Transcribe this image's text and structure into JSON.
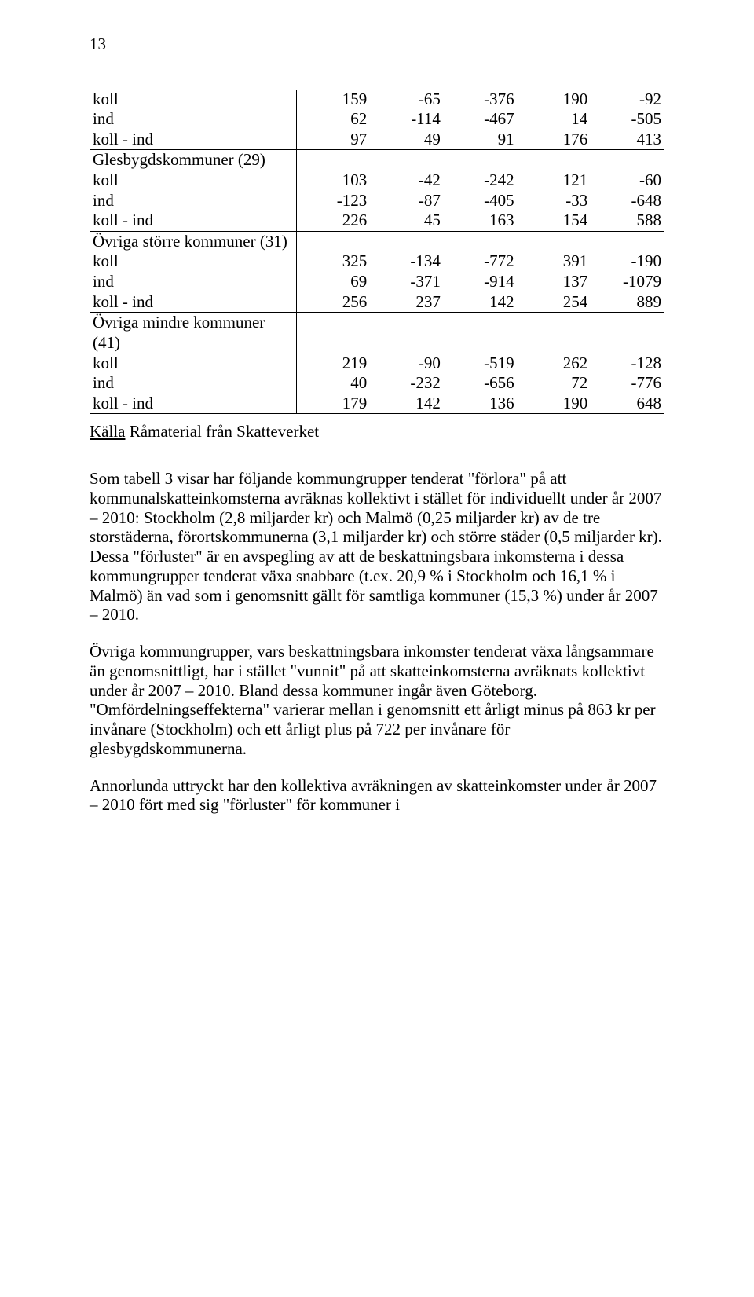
{
  "page_number": "13",
  "table": {
    "col_widths_pct": [
      36,
      12.8,
      12.8,
      12.8,
      12.8,
      12.8
    ],
    "font_size_pt": 16,
    "border_color": "#000000",
    "groups": [
      {
        "header": null,
        "rows": [
          {
            "label": "koll",
            "values": [
              "159",
              "-65",
              "-376",
              "190",
              "-92"
            ]
          },
          {
            "label": "ind",
            "values": [
              "62",
              "-114",
              "-467",
              "14",
              "-505"
            ]
          },
          {
            "label": "koll - ind",
            "values": [
              "97",
              "49",
              "91",
              "176",
              "413"
            ]
          }
        ]
      },
      {
        "header": "Glesbygdskommuner (29)",
        "rows": [
          {
            "label": "koll",
            "values": [
              "103",
              "-42",
              "-242",
              "121",
              "-60"
            ]
          },
          {
            "label": "ind",
            "values": [
              "-123",
              "-87",
              "-405",
              "-33",
              "-648"
            ]
          },
          {
            "label": "koll - ind",
            "values": [
              "226",
              "45",
              "163",
              "154",
              "588"
            ]
          }
        ]
      },
      {
        "header": "Övriga större kommuner (31)",
        "rows": [
          {
            "label": "koll",
            "values": [
              "325",
              "-134",
              "-772",
              "391",
              "-190"
            ]
          },
          {
            "label": "ind",
            "values": [
              "69",
              "-371",
              "-914",
              "137",
              "-1079"
            ]
          },
          {
            "label": "koll - ind",
            "values": [
              "256",
              "237",
              "142",
              "254",
              "889"
            ]
          }
        ]
      },
      {
        "header": "Övriga mindre kommuner (41)",
        "rows": [
          {
            "label": "koll",
            "values": [
              "219",
              "-90",
              "-519",
              "262",
              "-128"
            ]
          },
          {
            "label": "ind",
            "values": [
              "40",
              "-232",
              "-656",
              "72",
              "-776"
            ]
          },
          {
            "label": "koll - ind",
            "values": [
              "179",
              "142",
              "136",
              "190",
              "648"
            ]
          }
        ]
      }
    ]
  },
  "source": {
    "underlined": "Källa",
    "rest": "  Råmaterial från Skatteverket"
  },
  "paragraphs": [
    "Som tabell 3 visar har följande kommungrupper tenderat \"förlora\" på att kommunalskatteinkomsterna avräknas kollektivt i stället för individuellt under år 2007 – 2010: Stockholm (2,8 miljarder kr) och Malmö (0,25 miljarder kr) av de tre storstäderna, förortskommunerna (3,1 miljarder kr) och större städer (0,5 miljarder kr). Dessa \"förluster\" är en avspegling av att de beskattningsbara inkomsterna i dessa kommungrupper tenderat växa snabbare (t.ex. 20,9 % i Stockholm och 16,1 % i Malmö) än vad som i genomsnitt gällt för samtliga kommuner (15,3 %) under år 2007 – 2010.",
    "Övriga kommungrupper, vars beskattningsbara inkomster tenderat växa långsammare än genomsnittligt, har i stället \"vunnit\" på att skatteinkomsterna avräknats kollektivt under år 2007 – 2010. Bland dessa kommuner ingår även Göteborg. \"Omfördelningseffekterna\" varierar mellan i genomsnitt ett årligt minus på 863 kr per invånare (Stockholm) och ett årligt plus på 722 per invånare för glesbygdskommunerna.",
    "Annorlunda uttryckt har den kollektiva avräkningen av skatteinkomster under år 2007 – 2010 fört med sig \"förluster\" för kommuner i"
  ]
}
